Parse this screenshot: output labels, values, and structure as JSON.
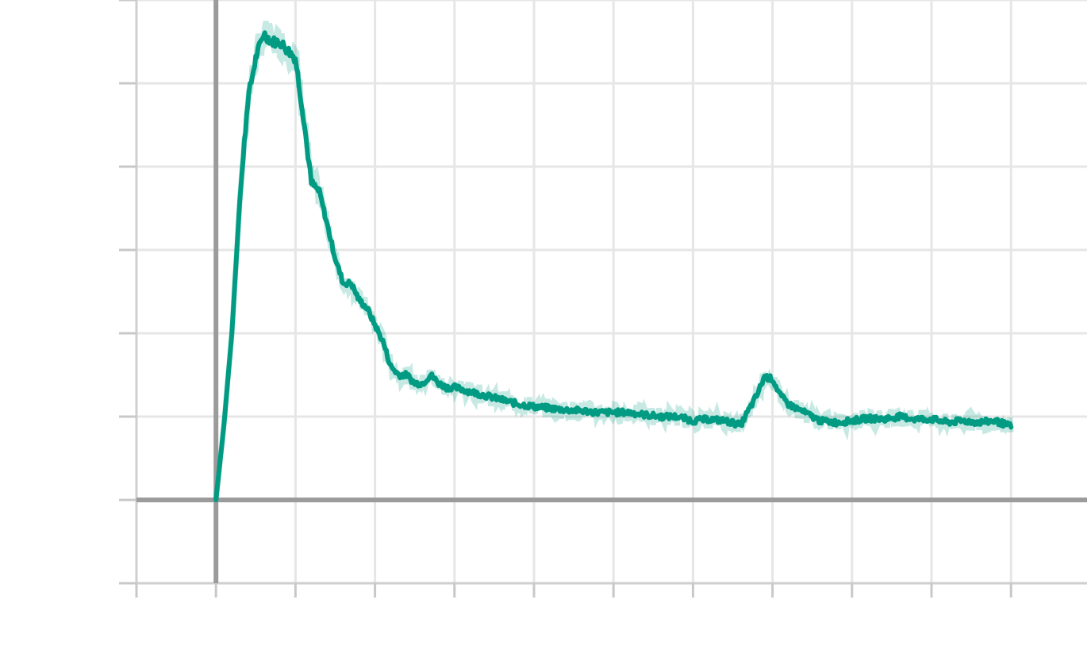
{
  "chart_data": {
    "type": "line",
    "title": "",
    "xlabel": "",
    "ylabel": "",
    "grid": true,
    "legend": "none",
    "xlim": [
      -1,
      11
    ],
    "ylim": [
      -1,
      6
    ],
    "x_ticks": [
      -1,
      0,
      1,
      2,
      3,
      4,
      5,
      6,
      7,
      8,
      9,
      10
    ],
    "y_ticks": [
      -1,
      0,
      1,
      2,
      3,
      4,
      5,
      6
    ],
    "series": [
      {
        "color": "#009b82",
        "style": "smoothed line with faint raw signal",
        "x": [
          0,
          0.1,
          0.2,
          0.3,
          0.4,
          0.5,
          0.6,
          0.7,
          0.8,
          0.9,
          1.0,
          1.1,
          1.2,
          1.3,
          1.4,
          1.5,
          1.6,
          1.7,
          1.8,
          1.9,
          2.0,
          2.1,
          2.2,
          2.3,
          2.4,
          2.5,
          2.6,
          2.7,
          2.8,
          2.9,
          3.0,
          3.2,
          3.4,
          3.6,
          3.8,
          4.0,
          4.2,
          4.4,
          4.6,
          4.8,
          5.0,
          5.2,
          5.4,
          5.6,
          5.8,
          6.0,
          6.2,
          6.4,
          6.6,
          6.8,
          6.9,
          7.0,
          7.1,
          7.2,
          7.4,
          7.6,
          7.8,
          8.0,
          8.2,
          8.4,
          8.6,
          8.8,
          9.0,
          9.2,
          9.4,
          9.6,
          9.8,
          10.0
        ],
        "y": [
          0.0,
          0.9,
          2.0,
          3.6,
          4.8,
          5.3,
          5.6,
          5.5,
          5.5,
          5.4,
          5.3,
          4.6,
          3.8,
          3.7,
          3.3,
          2.9,
          2.6,
          2.6,
          2.4,
          2.3,
          2.1,
          1.9,
          1.6,
          1.5,
          1.5,
          1.4,
          1.4,
          1.5,
          1.4,
          1.35,
          1.35,
          1.3,
          1.25,
          1.2,
          1.15,
          1.12,
          1.1,
          1.08,
          1.07,
          1.05,
          1.05,
          1.05,
          1.02,
          1.0,
          1.0,
          0.95,
          0.97,
          0.95,
          0.9,
          1.25,
          1.48,
          1.45,
          1.25,
          1.15,
          1.05,
          0.95,
          0.93,
          0.95,
          0.98,
          0.97,
          1.0,
          0.97,
          0.97,
          0.93,
          0.95,
          0.93,
          0.95,
          0.88
        ]
      }
    ]
  }
}
